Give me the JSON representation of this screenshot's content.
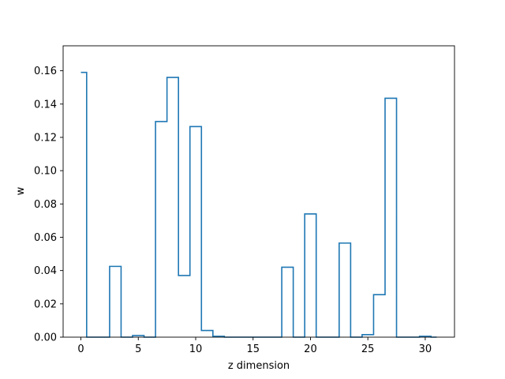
{
  "chart_data": {
    "type": "line",
    "drawstyle": "steps-mid",
    "title": "",
    "xlabel": "z dimension",
    "ylabel": "w",
    "xlim": [
      -1.55,
      32.55
    ],
    "ylim": [
      0,
      0.175
    ],
    "xticks": [
      0,
      5,
      10,
      15,
      20,
      25,
      30
    ],
    "xtick_labels": [
      "0",
      "5",
      "10",
      "15",
      "20",
      "25",
      "30"
    ],
    "yticks": [
      0.0,
      0.02,
      0.04,
      0.06,
      0.08,
      0.1,
      0.12,
      0.14,
      0.16
    ],
    "ytick_labels": [
      "0.00",
      "0.02",
      "0.04",
      "0.06",
      "0.08",
      "0.10",
      "0.12",
      "0.14",
      "0.16"
    ],
    "grid": false,
    "line_color": "#1f77b4",
    "x": [
      0,
      1,
      2,
      3,
      4,
      5,
      6,
      7,
      8,
      9,
      10,
      11,
      12,
      13,
      14,
      15,
      16,
      17,
      18,
      19,
      20,
      21,
      22,
      23,
      24,
      25,
      26,
      27,
      28,
      29,
      30,
      31
    ],
    "y": [
      0.159,
      0.0,
      0.0,
      0.0425,
      0.0,
      0.001,
      0.0,
      0.1295,
      0.156,
      0.037,
      0.1265,
      0.004,
      0.0005,
      0.0,
      0.0,
      0.0,
      0.0,
      0.0,
      0.042,
      0.0,
      0.074,
      0.0,
      0.0,
      0.0565,
      0.0,
      0.0015,
      0.0255,
      0.1435,
      0.0,
      0.0,
      0.0005,
      0.0
    ]
  }
}
